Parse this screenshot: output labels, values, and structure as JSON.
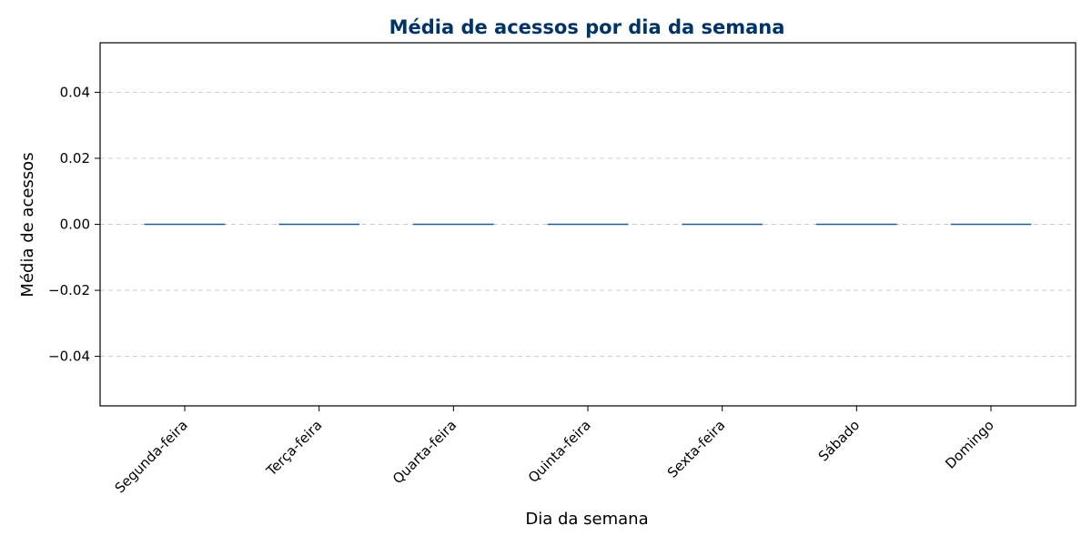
{
  "chart_data": {
    "type": "bar",
    "title": "Média de acessos por dia da semana",
    "xlabel": "Dia da semana",
    "ylabel": "Média de acessos",
    "categories": [
      "Segunda-feira",
      "Terça-feira",
      "Quarta-feira",
      "Quinta-feira",
      "Sexta-feira",
      "Sábado",
      "Domingo"
    ],
    "values": [
      0,
      0,
      0,
      0,
      0,
      0,
      0
    ],
    "ylim": [
      -0.055,
      0.055
    ],
    "yticks": [
      -0.04,
      -0.02,
      0.0,
      0.02,
      0.04
    ],
    "ytick_labels": [
      "−0.04",
      "−0.02",
      "0.00",
      "0.02",
      "0.04"
    ],
    "grid": "horizontal dashed",
    "bar_color": "#1f5a96",
    "title_color": "#003366"
  }
}
